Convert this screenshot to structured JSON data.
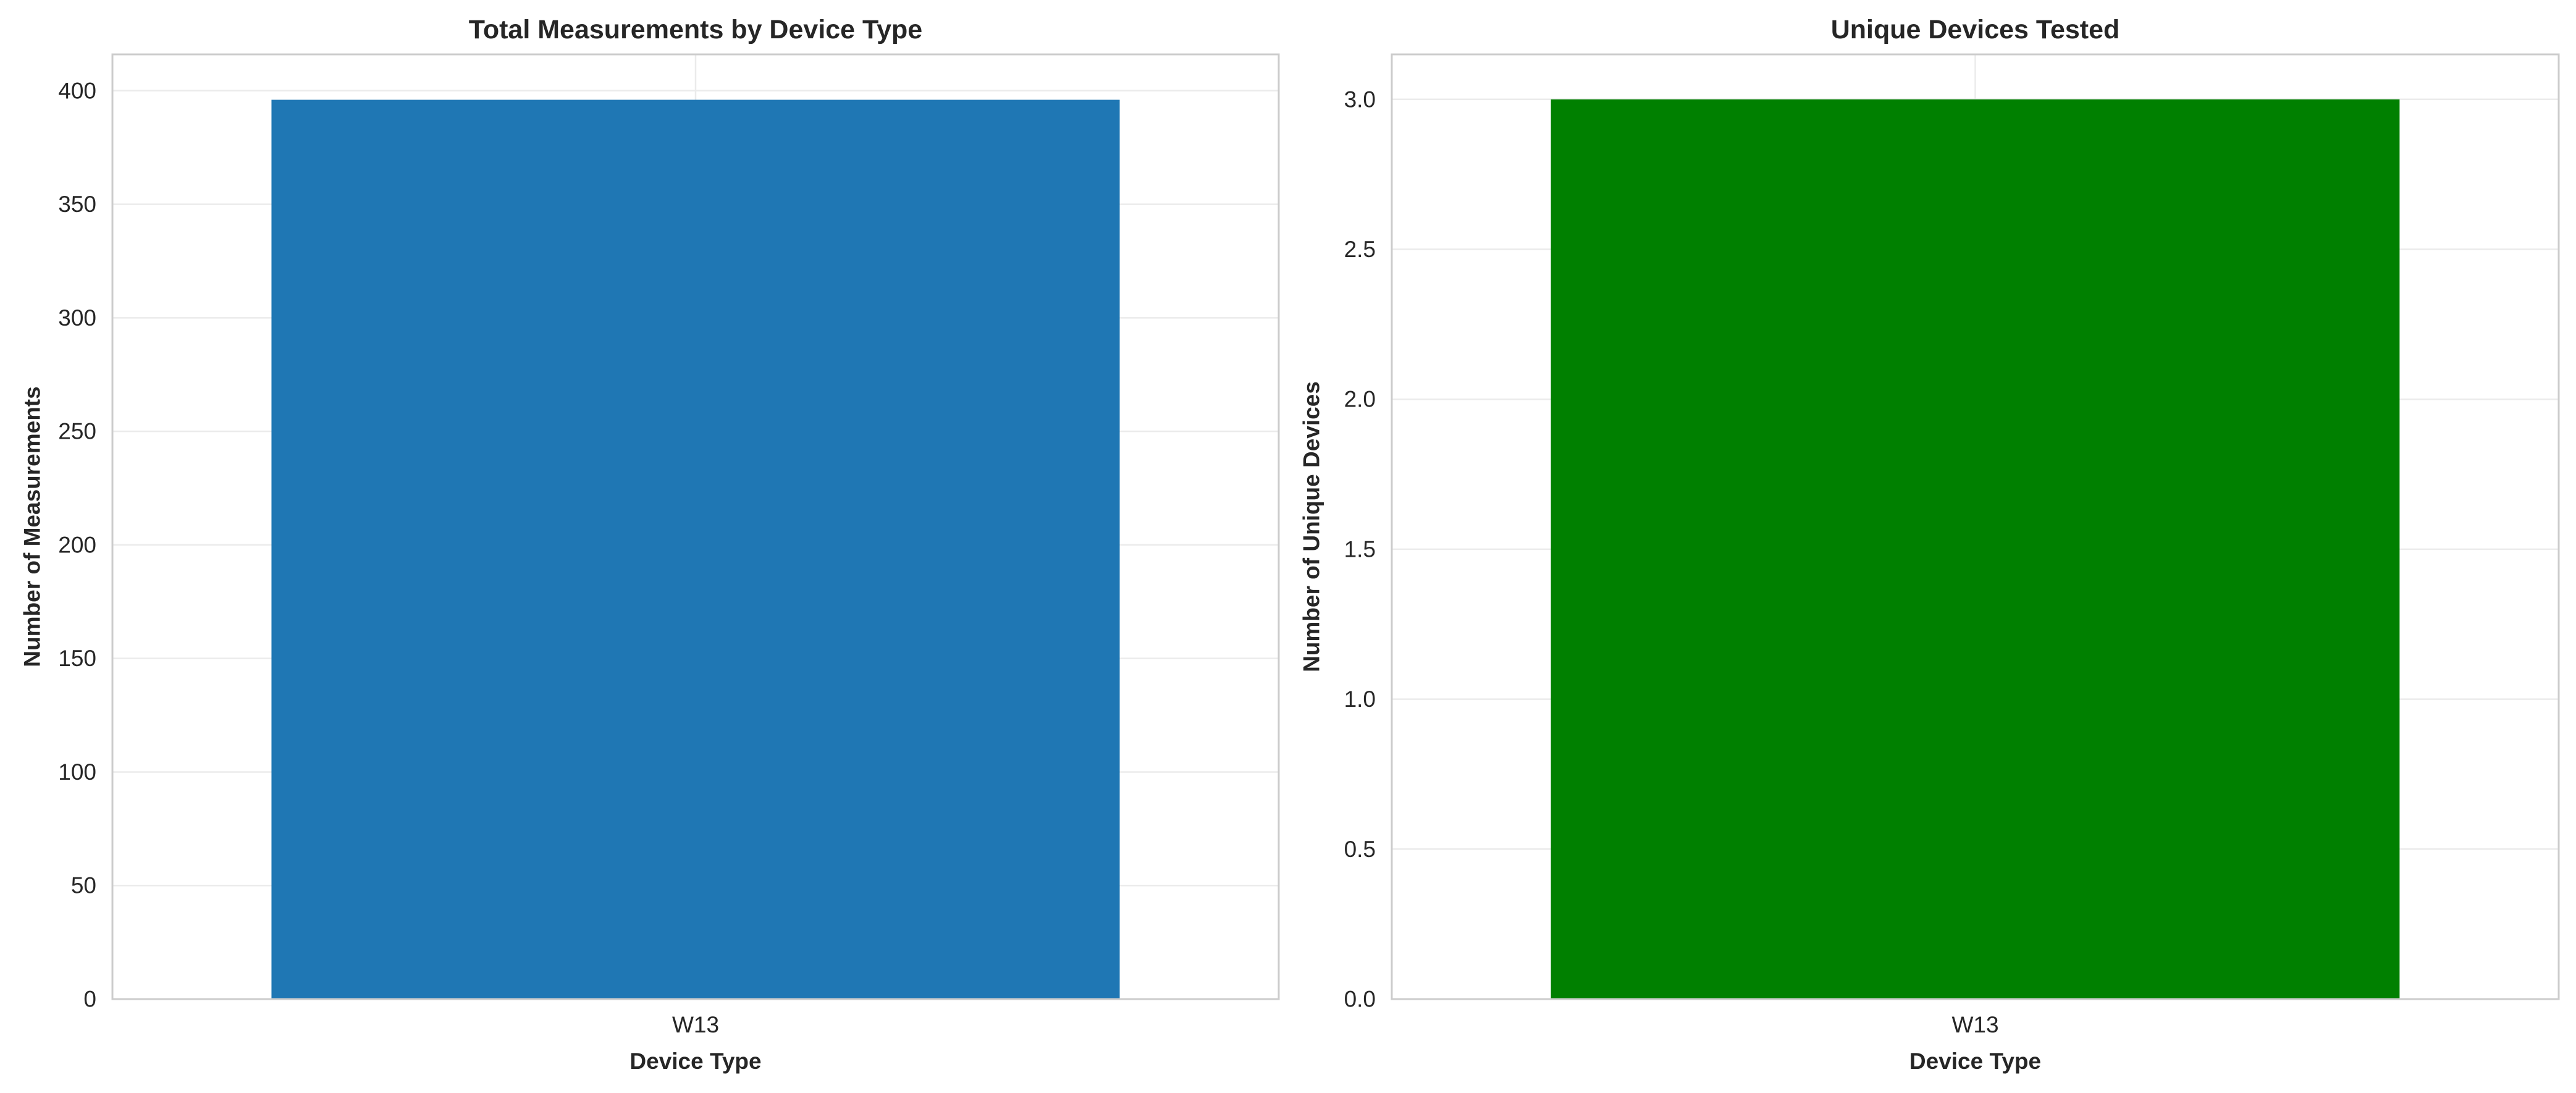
{
  "chart_data": [
    {
      "type": "bar",
      "title": "Total Measurements by Device Type",
      "xlabel": "Device Type",
      "ylabel": "Number of Measurements",
      "categories": [
        "W13"
      ],
      "values": [
        396
      ],
      "ylim": [
        0,
        416
      ],
      "yticks": [
        0,
        50,
        100,
        150,
        200,
        250,
        300,
        350,
        400
      ],
      "ytick_labels": [
        "0",
        "50",
        "100",
        "150",
        "200",
        "250",
        "300",
        "350",
        "400"
      ],
      "bar_color": "#1f77b4",
      "grid": true,
      "legend": false
    },
    {
      "type": "bar",
      "title": "Unique Devices Tested",
      "xlabel": "Device Type",
      "ylabel": "Number of Unique Devices",
      "categories": [
        "W13"
      ],
      "values": [
        3
      ],
      "ylim": [
        0,
        3.15
      ],
      "yticks": [
        0,
        0.5,
        1,
        1.5,
        2,
        2.5,
        3
      ],
      "ytick_labels": [
        "0.0",
        "0.5",
        "1.0",
        "1.5",
        "2.0",
        "2.5",
        "3.0"
      ],
      "bar_color": "#008000",
      "grid": true,
      "legend": false
    }
  ]
}
